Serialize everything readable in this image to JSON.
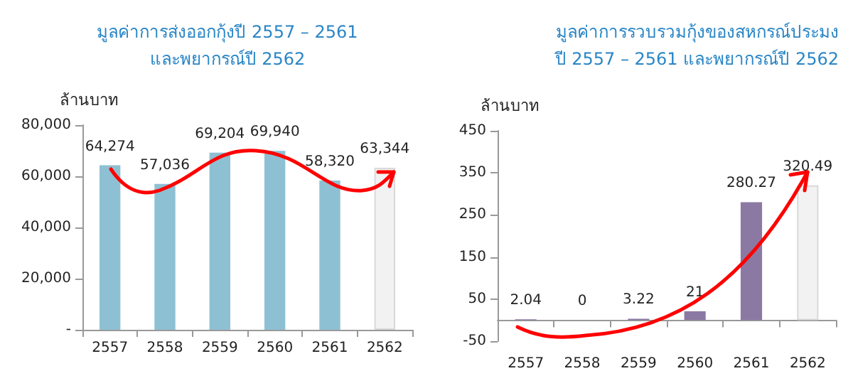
{
  "chart_data": [
    {
      "type": "bar",
      "title": "มูลค่าการส่งออกกุ้งปี 2557 – 2561\nและพยากรณ์ปี 2562",
      "ylabel": "ล้านบาท",
      "categories": [
        "2557",
        "2558",
        "2559",
        "2560",
        "2561",
        "2562"
      ],
      "values": [
        64274,
        57036,
        69204,
        69940,
        58320,
        63344
      ],
      "value_labels": [
        "64,274",
        "57,036",
        "69,204",
        "69,940",
        "58,320",
        "63,344"
      ],
      "colors": [
        "#8ec0d3",
        "#8ec0d3",
        "#8ec0d3",
        "#8ec0d3",
        "#8ec0d3",
        "#f2f2f2"
      ],
      "ylim": [
        0,
        80000
      ],
      "yticks": [
        {
          "value": 0,
          "label": "-"
        },
        {
          "value": 20000,
          "label": "20,000"
        },
        {
          "value": 40000,
          "label": "40,000"
        },
        {
          "value": 60000,
          "label": "60,000"
        },
        {
          "value": 80000,
          "label": "80,000"
        }
      ],
      "grid": false
    },
    {
      "type": "bar",
      "title": "มูลค่าการรวบรวมกุ้งของสหกรณ์ประมง\nปี 2557 – 2561 และพยากรณ์ปี 2562",
      "ylabel": "ล้านบาท",
      "categories": [
        "2557",
        "2558",
        "2559",
        "2560",
        "2561",
        "2562"
      ],
      "values": [
        2.04,
        0,
        3.22,
        21,
        280.27,
        320.49
      ],
      "data_labels": true,
      "colors": [
        "#8b79a3",
        "#8b79a3",
        "#8b79a3",
        "#8b79a3",
        "#8b79a3",
        "#f2f2f2"
      ],
      "ylim": [
        -50,
        450
      ],
      "yticks": [
        -50,
        50,
        150,
        250,
        350,
        450
      ],
      "grid": false
    }
  ]
}
